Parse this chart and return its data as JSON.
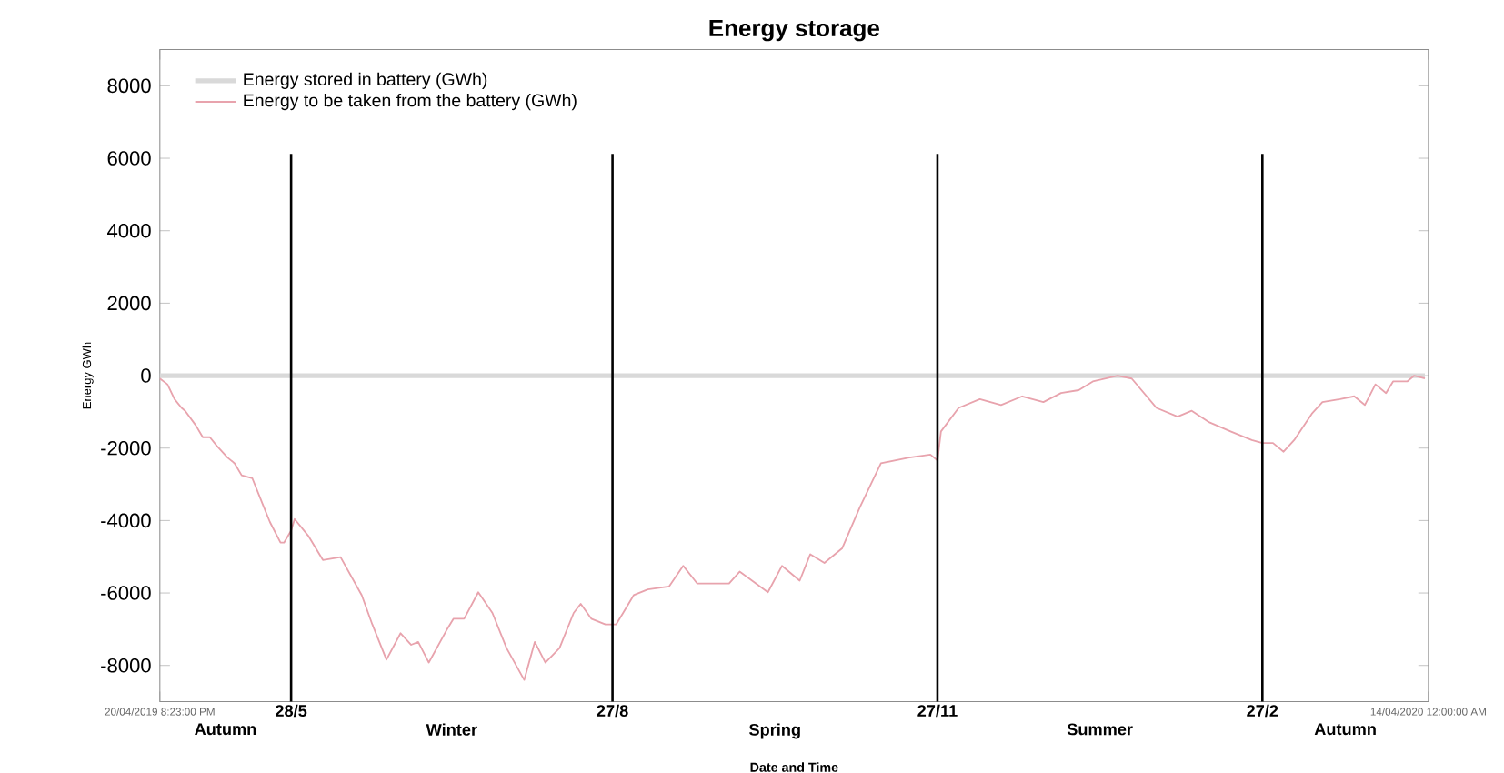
{
  "chart_data": {
    "type": "line",
    "title": "Energy storage",
    "xlabel": "Date and Time",
    "ylabel": "Energy GWh",
    "xlim": [
      "2019-04-20T20:23",
      "2020-04-14T00:00"
    ],
    "xticks": [
      {
        "value": "2019-04-20T20:23",
        "label": "20/04/2019 8:23:00 PM"
      },
      {
        "value": "2020-04-14T00:00",
        "label": "14/04/2020 12:00:00 AM"
      }
    ],
    "ylim": [
      -9000,
      9000
    ],
    "yticks": [
      -8000,
      -6000,
      -4000,
      -2000,
      0,
      2000,
      4000,
      6000,
      8000
    ],
    "legend": "top left",
    "series": [
      {
        "name": "Energy stored in battery (GWh)",
        "color": "#d9d9d9",
        "x": [
          "2019-04-20T20:23",
          "2020-04-13"
        ],
        "values": [
          0,
          0
        ]
      },
      {
        "name": "Energy to be taken from the battery (GWh)",
        "color": "#e8a3ad",
        "x": [
          "2019-04-20T20:23",
          "2019-04-23",
          "2019-04-25",
          "2019-04-27",
          "2019-04-28",
          "2019-05-01",
          "2019-05-03",
          "2019-05-05",
          "2019-05-07",
          "2019-05-10",
          "2019-05-12",
          "2019-05-14",
          "2019-05-17",
          "2019-05-20",
          "2019-05-22",
          "2019-05-25",
          "2019-05-26",
          "2019-05-28",
          "2019-05-29",
          "2019-06-02",
          "2019-06-06",
          "2019-06-11",
          "2019-06-17",
          "2019-06-20",
          "2019-06-24",
          "2019-06-28",
          "2019-07-01",
          "2019-07-03",
          "2019-07-06",
          "2019-07-11",
          "2019-07-13",
          "2019-07-16",
          "2019-07-20",
          "2019-07-24",
          "2019-07-28",
          "2019-08-02",
          "2019-08-05",
          "2019-08-08",
          "2019-08-12",
          "2019-08-16",
          "2019-08-18",
          "2019-08-21",
          "2019-08-25",
          "2019-08-28",
          "2019-08-30",
          "2019-09-02",
          "2019-09-06",
          "2019-09-12",
          "2019-09-16",
          "2019-09-20",
          "2019-09-25",
          "2019-09-29",
          "2019-10-02",
          "2019-10-10",
          "2019-10-14",
          "2019-10-19",
          "2019-10-22",
          "2019-10-26",
          "2019-10-31",
          "2019-11-05",
          "2019-11-11",
          "2019-11-19",
          "2019-11-25",
          "2019-11-27",
          "2019-11-28",
          "2019-12-03",
          "2019-12-09",
          "2019-12-15",
          "2019-12-21",
          "2019-12-27",
          "2020-01-01",
          "2020-01-06",
          "2020-01-10",
          "2020-01-17",
          "2020-01-21",
          "2020-01-28",
          "2020-02-03",
          "2020-02-07",
          "2020-02-12",
          "2020-02-18",
          "2020-02-24",
          "2020-02-27",
          "2020-03-01",
          "2020-03-04",
          "2020-03-07",
          "2020-03-12",
          "2020-03-15",
          "2020-03-20",
          "2020-03-24",
          "2020-03-27",
          "2020-03-30",
          "2020-04-02",
          "2020-04-04",
          "2020-04-08",
          "2020-04-10",
          "2020-04-13"
        ],
        "values": [
          -80,
          -240,
          -650,
          -890,
          -970,
          -1370,
          -1700,
          -1700,
          -1940,
          -2260,
          -2420,
          -2750,
          -2830,
          -3560,
          -4040,
          -4610,
          -4610,
          -4280,
          -3960,
          -4440,
          -5090,
          -5010,
          -6060,
          -6870,
          -7840,
          -7110,
          -7430,
          -7350,
          -7920,
          -7030,
          -6710,
          -6710,
          -5980,
          -6550,
          -7520,
          -8400,
          -7350,
          -7920,
          -7520,
          -6550,
          -6300,
          -6710,
          -6870,
          -6870,
          -6550,
          -6060,
          -5900,
          -5820,
          -5250,
          -5740,
          -5740,
          -5740,
          -5410,
          -5980,
          -5250,
          -5660,
          -4930,
          -5170,
          -4770,
          -3640,
          -2420,
          -2260,
          -2180,
          -2340,
          -1540,
          -890,
          -650,
          -810,
          -570,
          -730,
          -480,
          -400,
          -160,
          0,
          -80,
          -890,
          -1130,
          -970,
          -1290,
          -1540,
          -1780,
          -1860,
          -1860,
          -2100,
          -1780,
          -1050,
          -730,
          -650,
          -570,
          -810,
          -240,
          -480,
          -160,
          -160,
          0,
          -80
        ]
      }
    ],
    "ref_lines": [
      {
        "axis": "x",
        "value": "2019-05-28",
        "label": "28/5",
        "color": "#000000"
      },
      {
        "axis": "x",
        "value": "2019-08-27",
        "label": "27/8",
        "color": "#000000"
      },
      {
        "axis": "x",
        "value": "2019-11-27",
        "label": "27/11",
        "color": "#000000"
      },
      {
        "axis": "x",
        "value": "2020-02-27",
        "label": "27/2",
        "color": "#000000"
      }
    ],
    "annotations": [
      "Autumn",
      "Winter",
      "Spring",
      "Summer",
      "Autumn"
    ]
  }
}
